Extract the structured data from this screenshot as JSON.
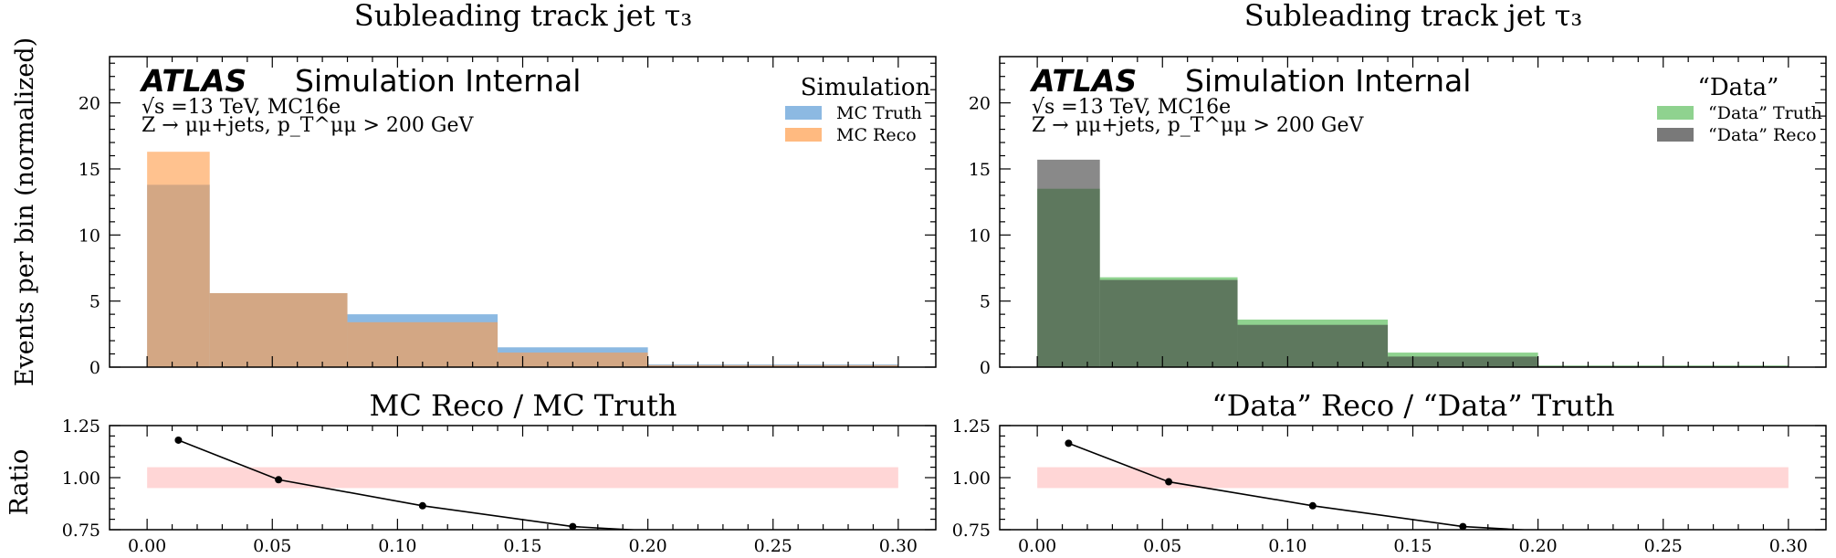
{
  "figure": {
    "ylabel_main": "Events per bin (normalized)",
    "ylabel_ratio": "Ratio"
  },
  "colors": {
    "truth_sim": "#5b9bd5",
    "reco_sim": "#ff9c4a",
    "truth_data": "#5fbf5f",
    "reco_data": "#404040",
    "band": "#ffd6d6"
  },
  "panels": [
    {
      "id": "sim",
      "title": "Subleading track jet τ₃",
      "atlas": "ATLAS",
      "atlas_tag": "Simulation Internal",
      "energy_line": "√s =13 TeV, MC16e",
      "process_line": "Z → μμ+jets, p_T^μμ > 200 GeV",
      "legend_title": "Simulation",
      "ratio_title": "MC Reco / MC Truth"
    },
    {
      "id": "data",
      "title": "Subleading track jet τ₃",
      "atlas": "ATLAS",
      "atlas_tag": "Simulation Internal",
      "energy_line": "√s =13 TeV, MC16e",
      "process_line": "Z → μμ+jets, p_T^μμ > 200 GeV",
      "legend_title": "“Data”",
      "ratio_title": "“Data” Reco / “Data” Truth"
    }
  ],
  "chart_data": [
    {
      "type": "histogram",
      "panel": "sim",
      "bin_edges": [
        0.0,
        0.025,
        0.08,
        0.14,
        0.2,
        0.3
      ],
      "series": [
        {
          "name": "MC Truth",
          "color_key": "truth_sim",
          "values": [
            13.8,
            5.6,
            4.0,
            1.5,
            0.2
          ]
        },
        {
          "name": "MC Reco",
          "color_key": "reco_sim",
          "values": [
            16.3,
            5.6,
            3.4,
            1.1,
            0.15
          ]
        }
      ],
      "xlim": [
        -0.015,
        0.315
      ],
      "ylim": [
        0,
        23.5
      ],
      "yticks": [
        0,
        5,
        10,
        15,
        20
      ],
      "legend_position": "top-right"
    },
    {
      "type": "histogram",
      "panel": "data",
      "bin_edges": [
        0.0,
        0.025,
        0.08,
        0.14,
        0.2,
        0.3
      ],
      "series": [
        {
          "name": "“Data” Truth",
          "color_key": "truth_data",
          "values": [
            13.5,
            6.8,
            3.6,
            1.1,
            0.12
          ]
        },
        {
          "name": "“Data” Reco",
          "color_key": "reco_data",
          "values": [
            15.7,
            6.6,
            3.2,
            0.8,
            0.08
          ]
        }
      ],
      "xlim": [
        -0.015,
        0.315
      ],
      "ylim": [
        0,
        23.5
      ],
      "yticks": [
        0,
        5,
        10,
        15,
        20
      ],
      "legend_position": "top-right"
    },
    {
      "type": "line",
      "panel": "sim",
      "x": [
        0.0125,
        0.0525,
        0.11,
        0.17,
        0.2
      ],
      "y": [
        1.18,
        0.99,
        0.865,
        0.765,
        0.745
      ],
      "band": {
        "x": [
          0.0,
          0.3
        ],
        "y": [
          0.95,
          1.05
        ]
      },
      "xlim": [
        -0.015,
        0.315
      ],
      "ylim": [
        0.75,
        1.25
      ],
      "xticks": [
        0.0,
        0.05,
        0.1,
        0.15,
        0.2,
        0.25,
        0.3
      ],
      "xtick_labels": [
        "0.00",
        "0.05",
        "0.10",
        "0.15",
        "0.20",
        "0.25",
        "0.30"
      ],
      "yticks": [
        0.75,
        1.0,
        1.25
      ],
      "ytick_labels": [
        "0.75",
        "1.00",
        "1.25"
      ]
    },
    {
      "type": "line",
      "panel": "data",
      "x": [
        0.0125,
        0.0525,
        0.11,
        0.17,
        0.2
      ],
      "y": [
        1.165,
        0.98,
        0.865,
        0.765,
        0.745
      ],
      "band": {
        "x": [
          0.0,
          0.3
        ],
        "y": [
          0.95,
          1.05
        ]
      },
      "xlim": [
        -0.015,
        0.315
      ],
      "ylim": [
        0.75,
        1.25
      ],
      "xticks": [
        0.0,
        0.05,
        0.1,
        0.15,
        0.2,
        0.25,
        0.3
      ],
      "xtick_labels": [
        "0.00",
        "0.05",
        "0.10",
        "0.15",
        "0.20",
        "0.25",
        "0.30"
      ],
      "yticks": [
        0.75,
        1.0,
        1.25
      ],
      "ytick_labels": [
        "0.75",
        "1.00",
        "1.25"
      ]
    }
  ]
}
